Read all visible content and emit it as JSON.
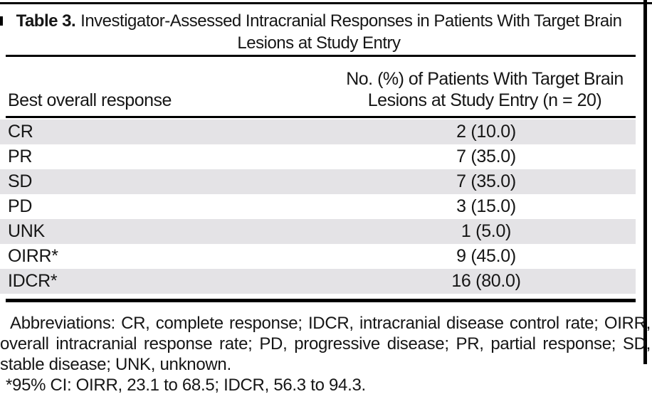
{
  "caption": {
    "label": "Table 3.",
    "title": "Investigator-Assessed Intracranial Responses in Patients With Target Brain Lesions at Study Entry"
  },
  "table": {
    "col_left_header": "Best overall response",
    "col_right_header": "No. (%) of Patients With Target Brain Lesions at Study Entry (n = 20)",
    "rows": [
      {
        "label": "CR",
        "value": "2 (10.0)"
      },
      {
        "label": "PR",
        "value": "7 (35.0)"
      },
      {
        "label": "SD",
        "value": "7 (35.0)"
      },
      {
        "label": "PD",
        "value": "3 (15.0)"
      },
      {
        "label": "UNK",
        "value": "1 (5.0)"
      },
      {
        "label": "OIRR*",
        "value": "9 (45.0)"
      },
      {
        "label": "IDCR*",
        "value": "16 (80.0)"
      }
    ]
  },
  "footnotes": {
    "abbreviations": "Abbreviations: CR, complete response; IDCR, intracranial disease control rate; OIRR, overall intracranial response rate; PD, progressive disease; PR, partial response; SD, stable disease; UNK, unknown.",
    "ci_note": "*95% CI: OIRR, 23.1 to 68.5; IDCR, 56.3 to 94.3."
  },
  "colors": {
    "stripe": "#e4e3e6",
    "rule": "#000000",
    "text": "#161616",
    "background": "#ffffff"
  },
  "chart_data": {
    "type": "table",
    "title": "Table 3. Investigator-Assessed Intracranial Responses in Patients With Target Brain Lesions at Study Entry",
    "columns": [
      "Best overall response",
      "No. (%) of Patients With Target Brain Lesions at Study Entry (n = 20)"
    ],
    "rows": [
      [
        "CR",
        "2 (10.0)"
      ],
      [
        "PR",
        "7 (35.0)"
      ],
      [
        "SD",
        "7 (35.0)"
      ],
      [
        "PD",
        "3 (15.0)"
      ],
      [
        "UNK",
        "1 (5.0)"
      ],
      [
        "OIRR*",
        "9 (45.0)"
      ],
      [
        "IDCR*",
        "16 (80.0)"
      ]
    ]
  }
}
